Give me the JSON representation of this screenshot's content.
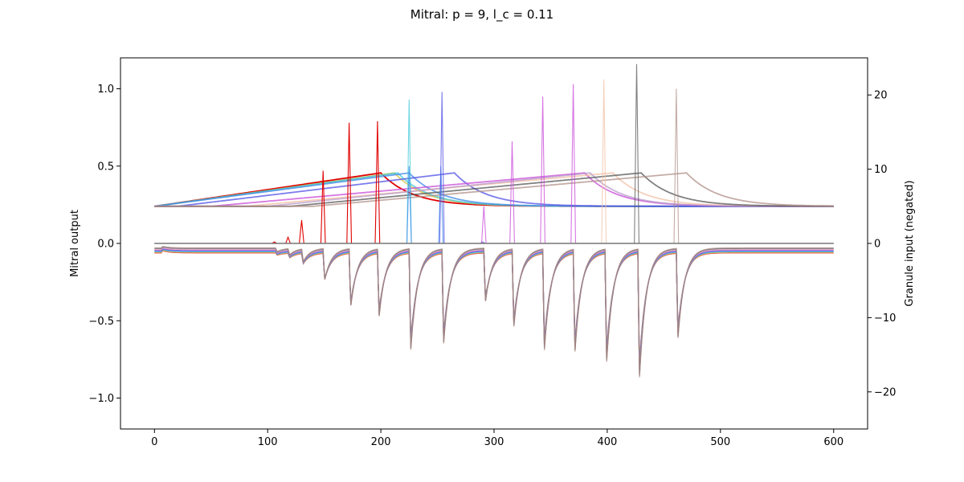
{
  "chart_data": {
    "type": "line",
    "title": "Mitral: p = 9, l_c = 0.11",
    "xlabel": "",
    "ylabel": "Mitral output",
    "y2label": "Granule input (negated)",
    "xlim": [
      -30,
      630
    ],
    "ylim": [
      -1.2,
      1.2
    ],
    "y2lim": [
      -25,
      25
    ],
    "xticks": [
      0,
      100,
      200,
      300,
      400,
      500,
      600
    ],
    "yticks": [
      -1.0,
      -0.5,
      0.0,
      0.5,
      1.0
    ],
    "y2ticks": [
      -20,
      -10,
      0,
      10,
      20
    ],
    "grid": false,
    "cells": [
      {
        "color": "#e00000",
        "ramp_start": 0,
        "peak": 200,
        "mitral_spikes": [
          [
            106,
            0.01
          ],
          [
            118,
            0.04
          ],
          [
            130,
            0.15
          ],
          [
            149,
            0.47
          ],
          [
            172,
            0.78
          ],
          [
            197,
            0.79
          ]
        ]
      },
      {
        "color": "#d4c23a",
        "ramp_start": 0,
        "peak": 212,
        "mitral_spikes": []
      },
      {
        "color": "#40c8d8",
        "ramp_start": 0,
        "peak": 215,
        "mitral_spikes": [
          [
            225,
            0.93
          ]
        ]
      },
      {
        "color": "#3a86e8",
        "ramp_start": 0,
        "peak": 225,
        "mitral_spikes": [
          [
            225,
            0.5
          ],
          [
            253,
            0.5
          ]
        ]
      },
      {
        "color": "#5050e6",
        "ramp_start": 20,
        "peak": 265,
        "mitral_spikes": [
          [
            254,
            0.98
          ],
          [
            290,
            0.01
          ]
        ]
      },
      {
        "color": "#c848d8",
        "ramp_start": 50,
        "peak": 380,
        "mitral_spikes": [
          [
            291,
            0.24
          ],
          [
            316,
            0.66
          ],
          [
            343,
            0.95
          ],
          [
            370,
            1.03
          ]
        ]
      },
      {
        "color": "#f2c0a4",
        "ramp_start": 80,
        "peak": 405,
        "mitral_spikes": [
          [
            397,
            1.06
          ]
        ]
      },
      {
        "color": "#b898c8",
        "ramp_start": 100,
        "peak": 385,
        "mitral_spikes": []
      },
      {
        "color": "#555555",
        "ramp_start": 120,
        "peak": 430,
        "mitral_spikes": [
          [
            426,
            1.16
          ]
        ]
      },
      {
        "color": "#b09088",
        "ramp_start": 140,
        "peak": 470,
        "mitral_spikes": [
          [
            461,
            1.0
          ]
        ]
      }
    ],
    "granule_pulses": [
      {
        "t": 6,
        "depth": -0.03
      },
      {
        "t": 107,
        "depth": -0.07
      },
      {
        "t": 118,
        "depth": -0.09
      },
      {
        "t": 130,
        "depth": -0.14
      },
      {
        "t": 149,
        "depth": -0.28
      },
      {
        "t": 172,
        "depth": -0.48
      },
      {
        "t": 197,
        "depth": -0.56
      },
      {
        "t": 225,
        "depth": -0.82
      },
      {
        "t": 254,
        "depth": -0.77
      },
      {
        "t": 291,
        "depth": -0.45
      },
      {
        "t": 316,
        "depth": -0.64
      },
      {
        "t": 343,
        "depth": -0.82
      },
      {
        "t": 370,
        "depth": -0.83
      },
      {
        "t": 398,
        "depth": -0.91
      },
      {
        "t": 427,
        "depth": -1.03
      },
      {
        "t": 461,
        "depth": -0.73
      }
    ]
  }
}
